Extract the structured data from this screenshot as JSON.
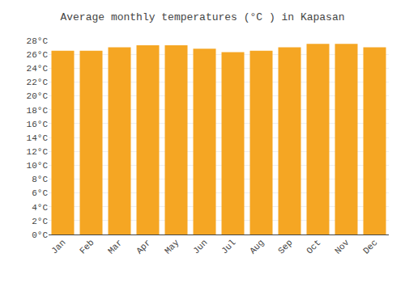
{
  "chart_data": {
    "type": "bar",
    "title": "Average monthly temperatures (°C ) in Kapasan",
    "categories": [
      "Jan",
      "Feb",
      "Mar",
      "Apr",
      "May",
      "Jun",
      "Jul",
      "Aug",
      "Sep",
      "Oct",
      "Nov",
      "Dec"
    ],
    "values": [
      26.5,
      26.5,
      27.0,
      27.3,
      27.3,
      26.8,
      26.3,
      26.5,
      27.0,
      27.5,
      27.5,
      27.0
    ],
    "color": "#F5A623",
    "ylim": [
      0,
      28
    ],
    "yticks": [
      {
        "value": 0,
        "label": "0°C"
      },
      {
        "value": 2,
        "label": "2°C"
      },
      {
        "value": 4,
        "label": "4°C"
      },
      {
        "value": 6,
        "label": "6°C"
      },
      {
        "value": 8,
        "label": "8°C"
      },
      {
        "value": 10,
        "label": "10°C"
      },
      {
        "value": 12,
        "label": "12°C"
      },
      {
        "value": 14,
        "label": "14°C"
      },
      {
        "value": 16,
        "label": "16°C"
      },
      {
        "value": 18,
        "label": "18°C"
      },
      {
        "value": 20,
        "label": "20°C"
      },
      {
        "value": 22,
        "label": "22°C"
      },
      {
        "value": 24,
        "label": "24°C"
      },
      {
        "value": 26,
        "label": "26°C"
      },
      {
        "value": 28,
        "label": "28°C"
      }
    ],
    "grid": true
  }
}
